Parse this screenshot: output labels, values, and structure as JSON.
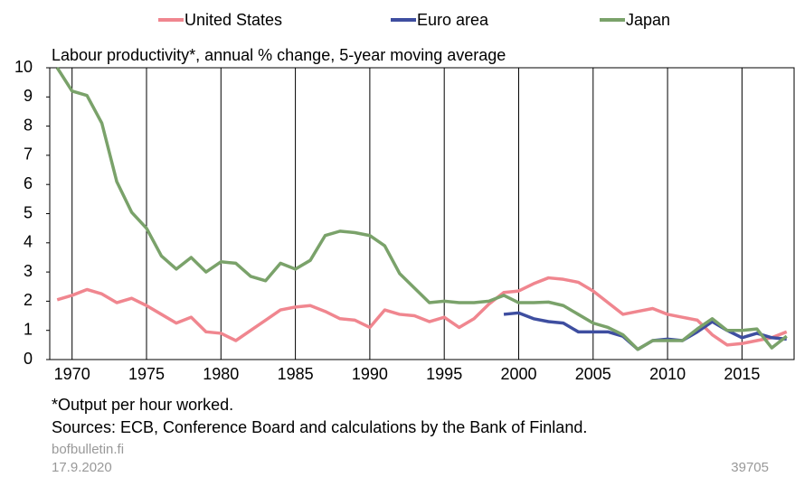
{
  "chart_data": {
    "type": "line",
    "title": "Labour productivity*, annual % change, 5-year moving average",
    "note": "*Output per hour worked.",
    "source": "Sources: ECB, Conference Board and calculations by the Bank of Finland.",
    "site": "bofbulletin.fi",
    "date": "17.9.2020",
    "id": "39705",
    "x": [
      1969,
      1970,
      1971,
      1972,
      1973,
      1974,
      1975,
      1976,
      1977,
      1978,
      1979,
      1980,
      1981,
      1982,
      1983,
      1984,
      1985,
      1986,
      1987,
      1988,
      1989,
      1990,
      1991,
      1992,
      1993,
      1994,
      1995,
      1996,
      1997,
      1998,
      1999,
      2000,
      2001,
      2002,
      2003,
      2004,
      2005,
      2006,
      2007,
      2008,
      2009,
      2010,
      2011,
      2012,
      2013,
      2014,
      2015,
      2016,
      2017,
      2018
    ],
    "series": [
      {
        "name": "United States",
        "color": "#f0868f",
        "values": [
          2.05,
          2.2,
          2.4,
          2.25,
          1.95,
          2.1,
          1.85,
          1.55,
          1.25,
          1.45,
          0.95,
          0.9,
          0.65,
          1.0,
          1.35,
          1.7,
          1.8,
          1.85,
          1.65,
          1.4,
          1.35,
          1.1,
          1.7,
          1.55,
          1.5,
          1.3,
          1.45,
          1.1,
          1.4,
          1.9,
          2.3,
          2.35,
          2.6,
          2.8,
          2.75,
          2.65,
          2.35,
          1.95,
          1.55,
          1.65,
          1.75,
          1.55,
          1.45,
          1.35,
          0.85,
          0.5,
          0.55,
          0.65,
          0.75,
          0.95
        ]
      },
      {
        "name": "Euro area",
        "color": "#3e4ea0",
        "values": [
          null,
          null,
          null,
          null,
          null,
          null,
          null,
          null,
          null,
          null,
          null,
          null,
          null,
          null,
          null,
          null,
          null,
          null,
          null,
          null,
          null,
          null,
          null,
          null,
          null,
          null,
          null,
          null,
          null,
          null,
          1.55,
          1.6,
          1.4,
          1.3,
          1.25,
          0.95,
          0.95,
          0.95,
          0.8,
          0.35,
          0.65,
          0.7,
          0.65,
          0.95,
          1.3,
          1.0,
          0.75,
          0.9,
          0.75,
          0.7
        ]
      },
      {
        "name": "Japan",
        "color": "#7aa26a",
        "values": [
          10,
          9.2,
          9.05,
          8.1,
          6.1,
          5.05,
          4.5,
          3.55,
          3.1,
          3.5,
          3.0,
          3.35,
          3.3,
          2.85,
          2.7,
          3.3,
          3.1,
          3.4,
          4.25,
          4.4,
          4.35,
          4.25,
          3.9,
          2.95,
          2.45,
          1.95,
          2.0,
          1.95,
          1.95,
          2.0,
          2.2,
          1.95,
          1.95,
          1.97,
          1.85,
          1.55,
          1.25,
          1.1,
          0.85,
          0.35,
          0.65,
          0.65,
          0.65,
          1.05,
          1.4,
          1.0,
          1.0,
          1.05,
          0.4,
          0.8
        ]
      }
    ],
    "xlim": [
      1968.5,
      2018.5
    ],
    "xticks": [
      1970,
      1975,
      1980,
      1985,
      1990,
      1995,
      2000,
      2005,
      2010,
      2015
    ],
    "ylim": [
      0,
      10
    ],
    "yticks": [
      0,
      1,
      2,
      3,
      4,
      5,
      6,
      7,
      8,
      9,
      10
    ],
    "grid": "x",
    "legend": "top"
  }
}
